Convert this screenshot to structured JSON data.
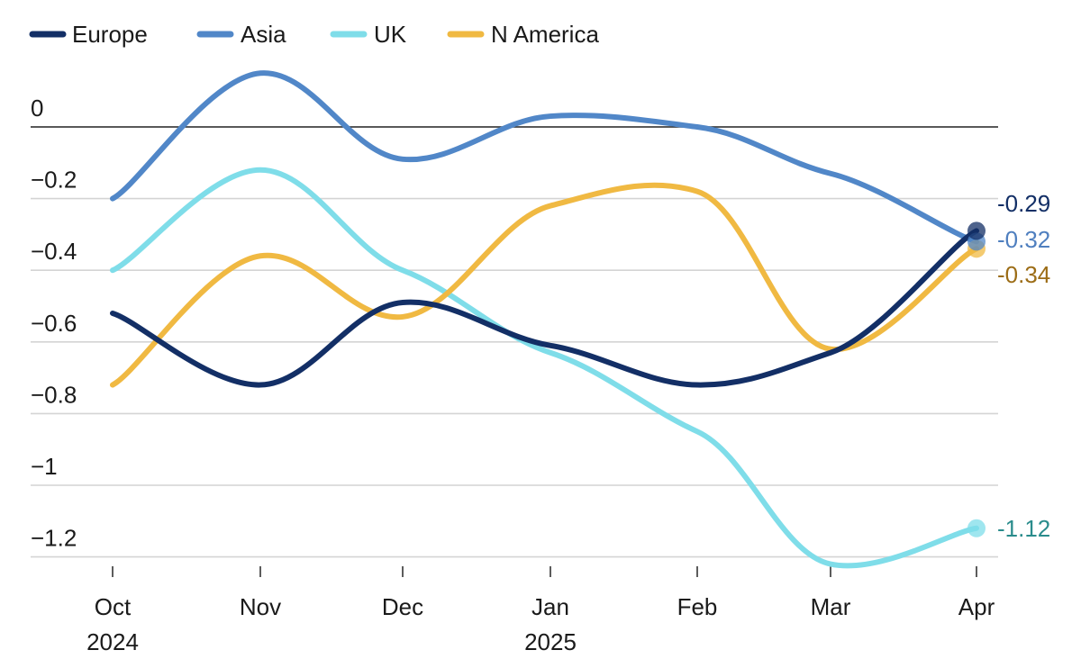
{
  "chart_data": {
    "type": "line",
    "title": "",
    "xlabel": "",
    "ylabel": "",
    "ylim": [
      -1.2,
      0
    ],
    "yticks": [
      0,
      -0.2,
      -0.4,
      -0.6,
      -0.8,
      -1,
      -1.2
    ],
    "ytick_labels": [
      "0",
      "−0.2",
      "−0.4",
      "−0.6",
      "−0.8",
      "−1",
      "−1.2"
    ],
    "categories": [
      "Oct",
      "Nov",
      "Dec",
      "Jan",
      "Feb",
      "Mar",
      "Apr"
    ],
    "year_labels": [
      "2024",
      "",
      "",
      "2025",
      "",
      "",
      ""
    ],
    "legend_position": "top-left",
    "series": [
      {
        "name": "Europe",
        "color": "#132f66",
        "values": [
          -0.52,
          -0.72,
          -0.49,
          -0.61,
          -0.72,
          -0.63,
          -0.29
        ],
        "end_label": "-0.29",
        "label_color": "#132f66"
      },
      {
        "name": "Asia",
        "color": "#5187c8",
        "values": [
          -0.2,
          0.15,
          -0.09,
          0.03,
          0.0,
          -0.13,
          -0.32
        ],
        "end_label": "-0.32",
        "label_color": "#4f7fbf"
      },
      {
        "name": "UK",
        "color": "#7fdde9",
        "values": [
          -0.4,
          -0.12,
          -0.4,
          -0.63,
          -0.85,
          -1.22,
          -1.12
        ],
        "end_label": "-1.12",
        "label_color": "#2a8c8c"
      },
      {
        "name": "N America",
        "color": "#f0b942",
        "values": [
          -0.72,
          -0.36,
          -0.53,
          -0.22,
          -0.18,
          -0.62,
          -0.34
        ],
        "end_label": "-0.34",
        "label_color": "#9c6d17"
      }
    ]
  }
}
